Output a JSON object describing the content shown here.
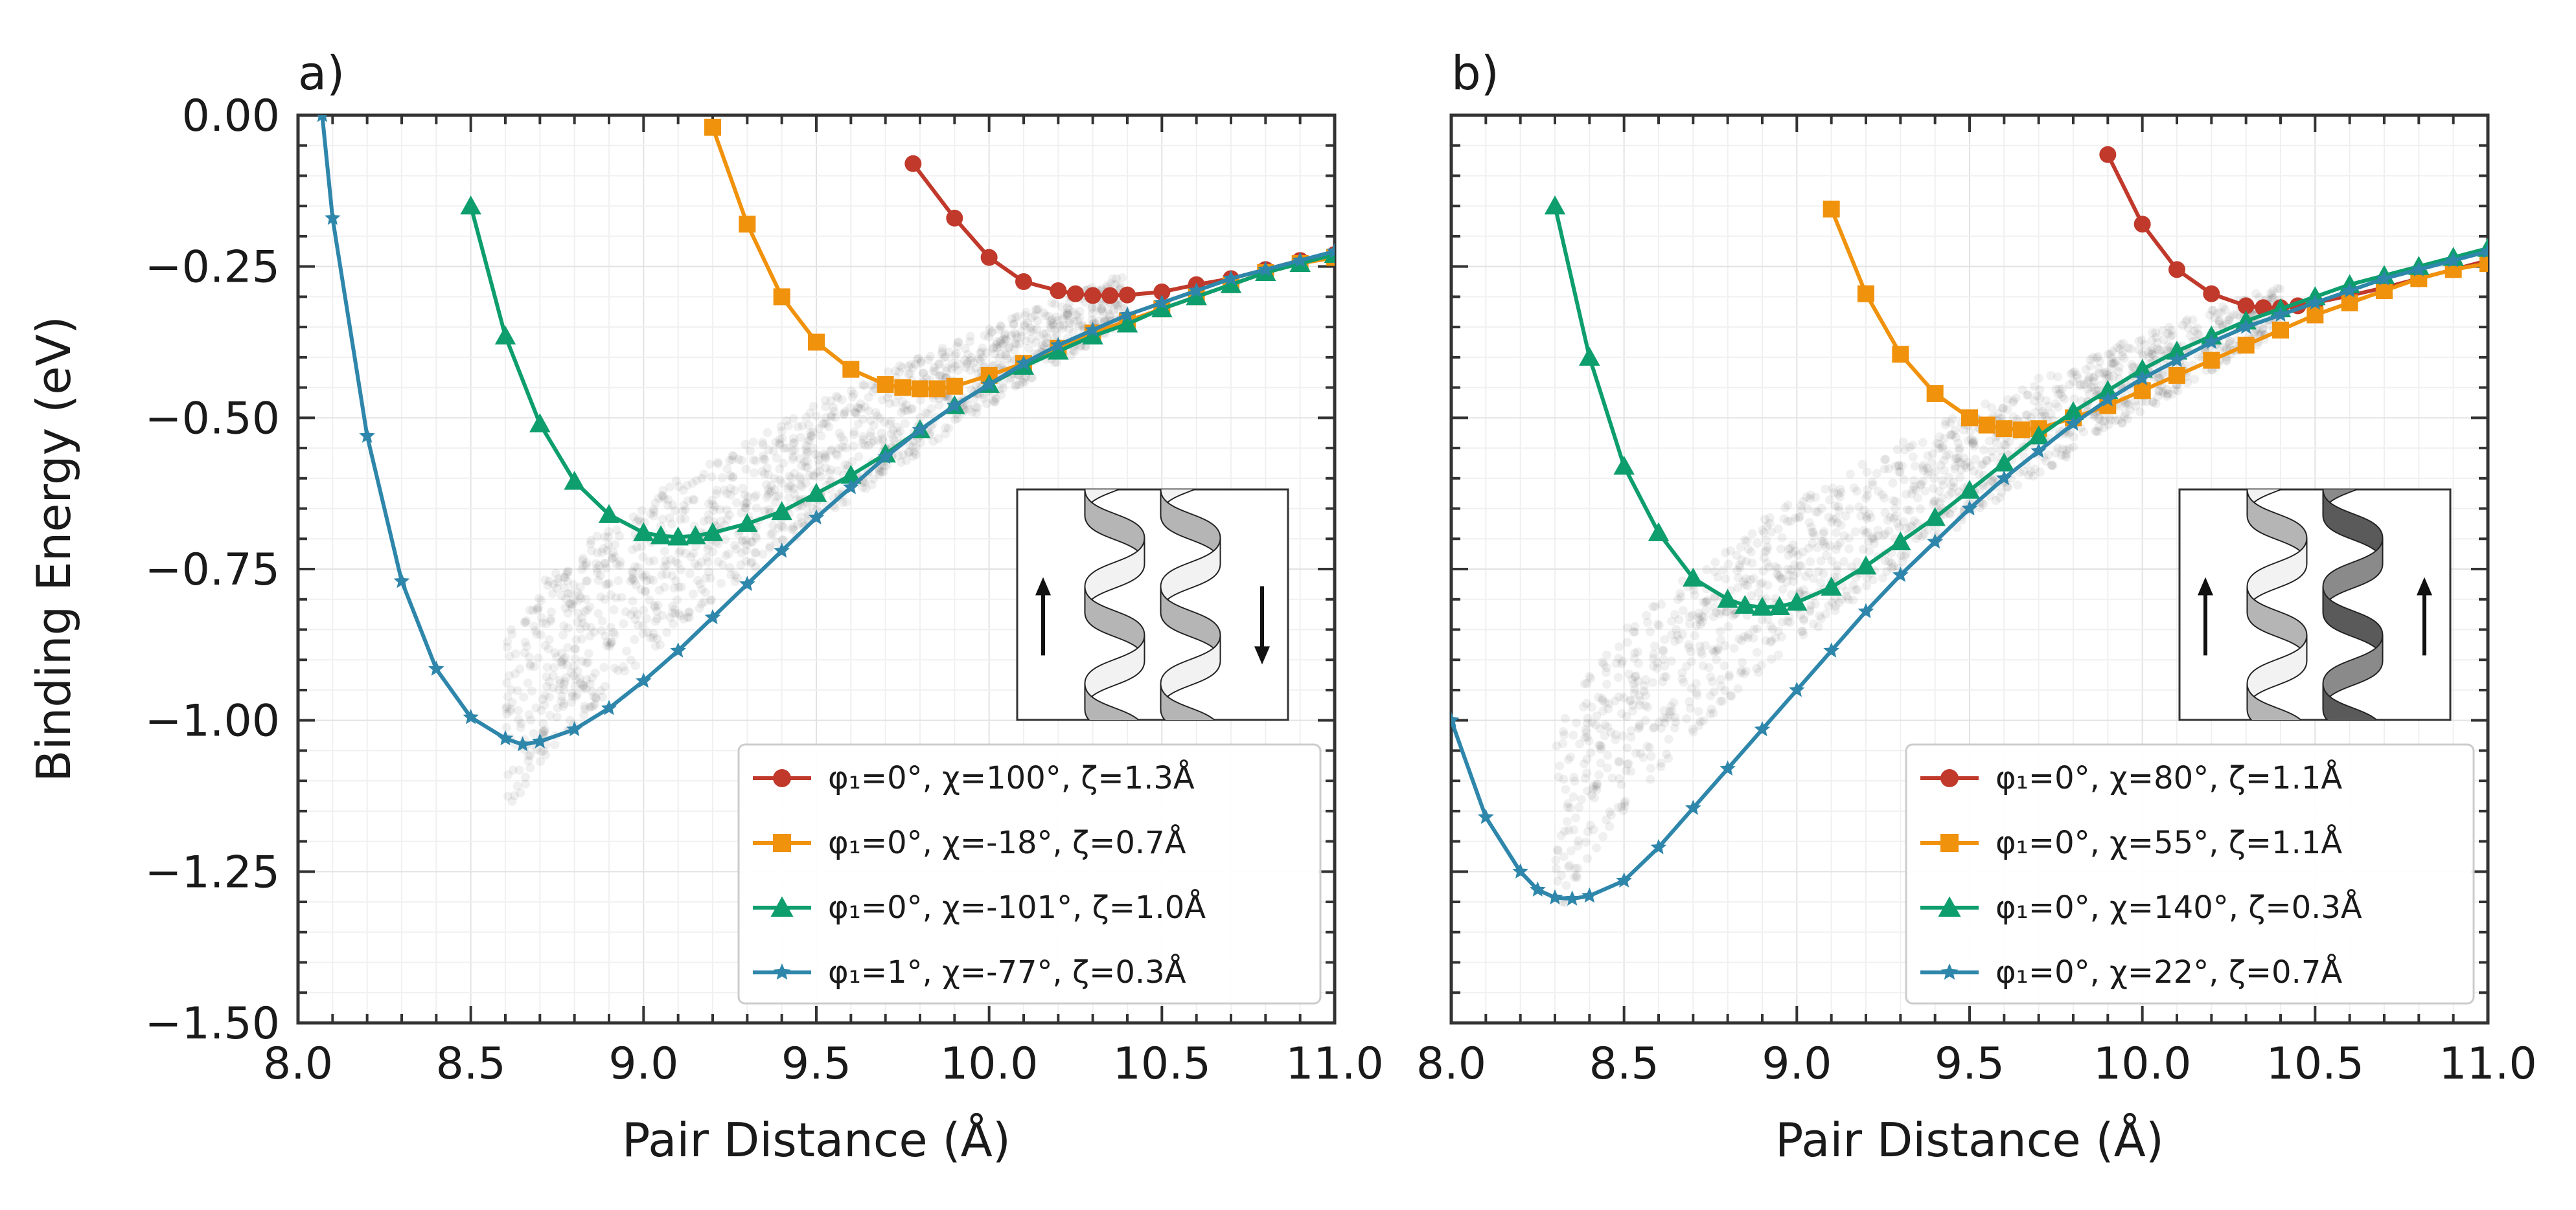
{
  "figure": {
    "ylabel": "Binding Energy (eV)",
    "xlabel": "Pair Distance (Å)"
  },
  "colors": {
    "red": "#c0392b",
    "orange": "#f0920c",
    "green": "#0e9e6e",
    "blue": "#2e86ab"
  },
  "chart_data": [
    {
      "type": "line",
      "panel_label": "a)",
      "xlabel": "Pair Distance (Å)",
      "ylabel": "Binding Energy (eV)",
      "xlim": [
        8.0,
        11.0
      ],
      "ylim": [
        -1.5,
        0.0
      ],
      "xticks": [
        "8.0",
        "8.5",
        "9.0",
        "9.5",
        "10.0",
        "10.5",
        "11.0"
      ],
      "yticks": [
        "0.00",
        "−0.25",
        "−0.50",
        "−0.75",
        "−1.00",
        "−1.25",
        "−1.50"
      ],
      "inset": "antiparallel",
      "series": [
        {
          "name": "φ₁=0°, χ=100°, ζ=1.3Å",
          "color": "#c0392b",
          "marker": "circle",
          "x": [
            9.78,
            9.9,
            10.0,
            10.1,
            10.2,
            10.25,
            10.3,
            10.35,
            10.4,
            10.5,
            10.6,
            10.7,
            10.8,
            10.9,
            11.0
          ],
          "y": [
            -0.08,
            -0.17,
            -0.235,
            -0.275,
            -0.29,
            -0.295,
            -0.298,
            -0.298,
            -0.297,
            -0.292,
            -0.28,
            -0.27,
            -0.255,
            -0.24,
            -0.23
          ]
        },
        {
          "name": "φ₁=0°, χ=-18°, ζ=0.7Å",
          "color": "#f0920c",
          "marker": "square",
          "x": [
            9.2,
            9.3,
            9.4,
            9.5,
            9.6,
            9.7,
            9.75,
            9.8,
            9.85,
            9.9,
            10.0,
            10.1,
            10.2,
            10.3,
            10.4,
            10.5,
            10.6,
            10.7,
            10.8,
            10.9,
            11.0
          ],
          "y": [
            -0.02,
            -0.18,
            -0.3,
            -0.375,
            -0.42,
            -0.445,
            -0.45,
            -0.452,
            -0.452,
            -0.448,
            -0.43,
            -0.41,
            -0.385,
            -0.36,
            -0.34,
            -0.32,
            -0.3,
            -0.28,
            -0.26,
            -0.245,
            -0.235
          ]
        },
        {
          "name": "φ₁=0°, χ=-101°, ζ=1.0Å",
          "color": "#0e9e6e",
          "marker": "triangle",
          "x": [
            8.5,
            8.6,
            8.7,
            8.8,
            8.9,
            9.0,
            9.05,
            9.1,
            9.15,
            9.2,
            9.3,
            9.4,
            9.5,
            9.6,
            9.7,
            9.8,
            9.9,
            10.0,
            10.1,
            10.2,
            10.3,
            10.4,
            10.5,
            10.6,
            10.7,
            10.8,
            10.9,
            11.0
          ],
          "y": [
            -0.15,
            -0.365,
            -0.51,
            -0.605,
            -0.66,
            -0.69,
            -0.695,
            -0.697,
            -0.695,
            -0.69,
            -0.675,
            -0.655,
            -0.625,
            -0.595,
            -0.56,
            -0.52,
            -0.48,
            -0.445,
            -0.415,
            -0.39,
            -0.365,
            -0.345,
            -0.32,
            -0.3,
            -0.28,
            -0.26,
            -0.245,
            -0.23
          ]
        },
        {
          "name": "φ₁=1°, χ=-77°, ζ=0.3Å",
          "color": "#2e86ab",
          "marker": "star",
          "x": [
            8.07,
            8.1,
            8.2,
            8.3,
            8.4,
            8.5,
            8.6,
            8.65,
            8.7,
            8.8,
            8.9,
            9.0,
            9.1,
            9.2,
            9.3,
            9.4,
            9.5,
            9.6,
            9.7,
            9.8,
            9.9,
            10.0,
            10.1,
            10.2,
            10.3,
            10.4,
            10.5,
            10.6,
            10.7,
            10.8,
            10.9,
            11.0
          ],
          "y": [
            0.0,
            -0.17,
            -0.53,
            -0.77,
            -0.915,
            -0.995,
            -1.03,
            -1.04,
            -1.035,
            -1.015,
            -0.98,
            -0.935,
            -0.885,
            -0.83,
            -0.775,
            -0.72,
            -0.665,
            -0.615,
            -0.565,
            -0.52,
            -0.48,
            -0.445,
            -0.41,
            -0.38,
            -0.355,
            -0.33,
            -0.31,
            -0.29,
            -0.27,
            -0.255,
            -0.24,
            -0.225
          ]
        }
      ]
    },
    {
      "type": "line",
      "panel_label": "b)",
      "xlabel": "Pair Distance (Å)",
      "ylabel": "",
      "xlim": [
        8.0,
        11.0
      ],
      "ylim": [
        -1.5,
        0.0
      ],
      "xticks": [
        "8.0",
        "8.5",
        "9.0",
        "9.5",
        "10.0",
        "10.5",
        "11.0"
      ],
      "yticks": [],
      "inset": "parallel",
      "series": [
        {
          "name": "φ₁=0°, χ=80°, ζ=1.1Å",
          "color": "#c0392b",
          "marker": "circle",
          "x": [
            9.9,
            10.0,
            10.1,
            10.2,
            10.3,
            10.35,
            10.4,
            10.45,
            10.5,
            10.6,
            10.7,
            10.8,
            10.9,
            11.0
          ],
          "y": [
            -0.065,
            -0.18,
            -0.255,
            -0.295,
            -0.315,
            -0.318,
            -0.318,
            -0.315,
            -0.31,
            -0.298,
            -0.285,
            -0.27,
            -0.255,
            -0.24
          ]
        },
        {
          "name": "φ₁=0°, χ=55°, ζ=1.1Å",
          "color": "#f0920c",
          "marker": "square",
          "x": [
            9.1,
            9.2,
            9.3,
            9.4,
            9.5,
            9.55,
            9.6,
            9.65,
            9.7,
            9.8,
            9.9,
            10.0,
            10.1,
            10.2,
            10.3,
            10.4,
            10.5,
            10.6,
            10.7,
            10.8,
            10.9,
            11.0
          ],
          "y": [
            -0.155,
            -0.295,
            -0.395,
            -0.46,
            -0.5,
            -0.512,
            -0.518,
            -0.52,
            -0.518,
            -0.5,
            -0.48,
            -0.455,
            -0.43,
            -0.405,
            -0.38,
            -0.355,
            -0.33,
            -0.31,
            -0.29,
            -0.27,
            -0.255,
            -0.245
          ]
        },
        {
          "name": "φ₁=0°, χ=140°, ζ=0.3Å",
          "color": "#0e9e6e",
          "marker": "triangle",
          "x": [
            8.3,
            8.4,
            8.5,
            8.6,
            8.7,
            8.8,
            8.85,
            8.9,
            8.95,
            9.0,
            9.1,
            9.2,
            9.3,
            9.4,
            9.5,
            9.6,
            9.7,
            9.8,
            9.9,
            10.0,
            10.1,
            10.2,
            10.3,
            10.4,
            10.5,
            10.6,
            10.7,
            10.8,
            10.9,
            11.0
          ],
          "y": [
            -0.15,
            -0.4,
            -0.58,
            -0.69,
            -0.765,
            -0.8,
            -0.81,
            -0.813,
            -0.812,
            -0.805,
            -0.78,
            -0.745,
            -0.705,
            -0.665,
            -0.62,
            -0.575,
            -0.53,
            -0.49,
            -0.455,
            -0.42,
            -0.39,
            -0.365,
            -0.34,
            -0.32,
            -0.3,
            -0.28,
            -0.265,
            -0.25,
            -0.235,
            -0.22
          ]
        },
        {
          "name": "φ₁=0°, χ=22°, ζ=0.7Å",
          "color": "#2e86ab",
          "marker": "star",
          "x": [
            8.0,
            8.1,
            8.2,
            8.25,
            8.3,
            8.35,
            8.4,
            8.5,
            8.6,
            8.7,
            8.8,
            8.9,
            9.0,
            9.1,
            9.2,
            9.3,
            9.4,
            9.5,
            9.6,
            9.7,
            9.8,
            9.9,
            10.0,
            10.1,
            10.2,
            10.3,
            10.4,
            10.5,
            10.6,
            10.7,
            10.8,
            10.9,
            11.0
          ],
          "y": [
            -1.0,
            -1.16,
            -1.25,
            -1.28,
            -1.293,
            -1.295,
            -1.29,
            -1.265,
            -1.21,
            -1.145,
            -1.08,
            -1.015,
            -0.95,
            -0.885,
            -0.82,
            -0.76,
            -0.705,
            -0.65,
            -0.6,
            -0.555,
            -0.51,
            -0.47,
            -0.435,
            -0.405,
            -0.375,
            -0.35,
            -0.33,
            -0.31,
            -0.29,
            -0.27,
            -0.255,
            -0.24,
            -0.225
          ]
        }
      ]
    }
  ]
}
